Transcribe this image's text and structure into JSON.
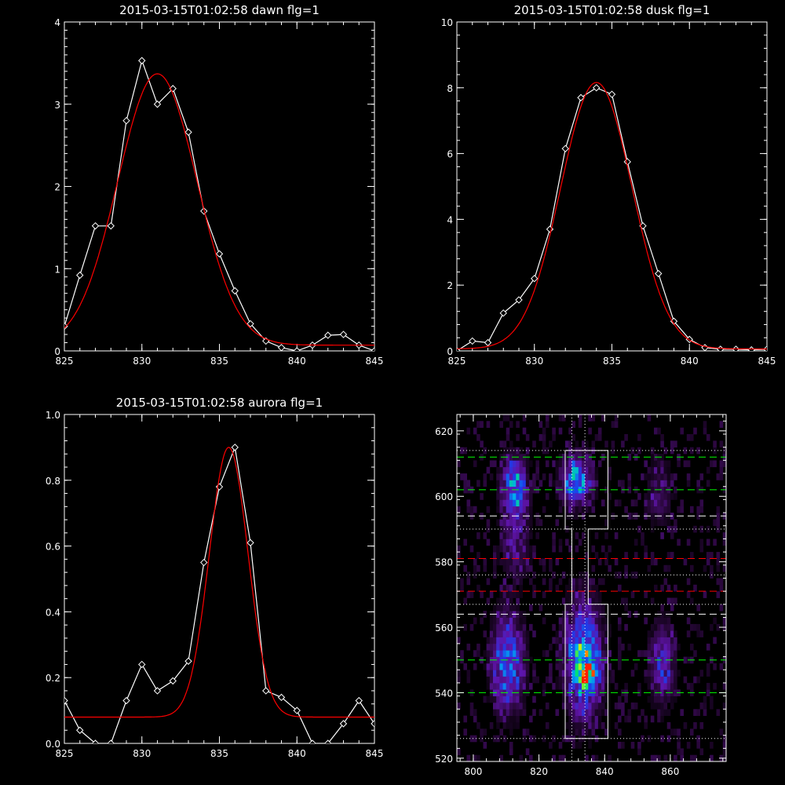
{
  "chart_data": [
    {
      "type": "line",
      "title": "2015-03-15T01:02:58 dawn flg=1",
      "xlim": [
        825,
        845
      ],
      "ylim": [
        0,
        4
      ],
      "xticks": [
        825,
        830,
        835,
        840,
        845
      ],
      "yticks": [
        0,
        1,
        2,
        3,
        4
      ],
      "series": [
        {
          "color": "#ffffff",
          "marker": "diamond",
          "x": [
            825,
            826,
            827,
            828,
            829,
            830,
            831,
            832,
            833,
            834,
            835,
            836,
            837,
            838,
            839,
            840,
            841,
            842,
            843,
            844,
            845
          ],
          "y": [
            0.3,
            0.92,
            1.52,
            1.52,
            2.8,
            3.53,
            3.0,
            3.19,
            2.66,
            1.7,
            1.18,
            0.73,
            0.33,
            0.12,
            0.04,
            0.0,
            0.07,
            0.19,
            0.2,
            0.07,
            0.0
          ]
        },
        {
          "color": "#ff0000",
          "fit": "gaussian",
          "amp": 3.3,
          "center": 831,
          "sigma": 2.55,
          "offset": 0.07
        }
      ]
    },
    {
      "type": "line",
      "title": "2015-03-15T01:02:58 dusk flg=1",
      "xlim": [
        825,
        845
      ],
      "ylim": [
        0,
        10
      ],
      "xticks": [
        825,
        830,
        835,
        840,
        845
      ],
      "yticks": [
        0,
        2,
        4,
        6,
        8,
        10
      ],
      "series": [
        {
          "color": "#ffffff",
          "marker": "diamond",
          "x": [
            825,
            826,
            827,
            828,
            829,
            830,
            831,
            832,
            833,
            834,
            835,
            836,
            837,
            838,
            839,
            840,
            841,
            842,
            843,
            844,
            845
          ],
          "y": [
            0.0,
            0.3,
            0.25,
            1.15,
            1.55,
            2.2,
            3.7,
            6.15,
            7.7,
            8.0,
            7.8,
            5.75,
            3.8,
            2.35,
            0.9,
            0.35,
            0.1,
            0.05,
            0.05,
            0.03,
            0.05
          ]
        },
        {
          "color": "#ff0000",
          "fit": "gaussian",
          "amp": 8.1,
          "center": 834,
          "sigma": 2.3,
          "offset": 0.06
        }
      ]
    },
    {
      "type": "line",
      "title": "2015-03-15T01:02:58 aurora flg=1",
      "xlim": [
        825,
        845
      ],
      "ylim": [
        0,
        1.0
      ],
      "xticks": [
        825,
        830,
        835,
        840,
        845
      ],
      "yticks": [
        0.0,
        0.2,
        0.4,
        0.6,
        0.8,
        1.0
      ],
      "series": [
        {
          "color": "#ffffff",
          "marker": "diamond",
          "x": [
            825,
            826,
            827,
            828,
            829,
            830,
            831,
            832,
            833,
            834,
            835,
            836,
            837,
            838,
            839,
            840,
            841,
            842,
            843,
            844,
            845
          ],
          "y": [
            0.13,
            0.04,
            0.0,
            0.0,
            0.13,
            0.24,
            0.16,
            0.19,
            0.25,
            0.55,
            0.78,
            0.9,
            0.61,
            0.16,
            0.14,
            0.1,
            0.0,
            0.0,
            0.06,
            0.13,
            0.06
          ]
        },
        {
          "color": "#ff0000",
          "fit": "gaussian",
          "amp": 0.82,
          "center": 835.6,
          "sigma": 1.25,
          "offset": 0.08
        }
      ]
    },
    {
      "type": "heatmap",
      "title": "",
      "xlim": [
        795,
        877
      ],
      "ylim": [
        519,
        625
      ],
      "xticks": [
        800,
        820,
        840,
        860
      ],
      "yticks": [
        520,
        540,
        560,
        580,
        600,
        620
      ],
      "colormap": "dark-purple-blue-cyan-green-yellow-red",
      "blobs": [
        {
          "x": 812,
          "y": 602,
          "sx": 2.5,
          "sy": 6,
          "amp": 0.5
        },
        {
          "x": 831,
          "y": 604,
          "sx": 3,
          "sy": 5,
          "amp": 0.55
        },
        {
          "x": 810,
          "y": 548,
          "sx": 3,
          "sy": 9,
          "amp": 0.55
        },
        {
          "x": 833,
          "y": 549,
          "sx": 3.5,
          "sy": 11,
          "amp": 0.65
        },
        {
          "x": 835,
          "y": 545,
          "sx": 1.8,
          "sy": 3,
          "amp": 0.45
        },
        {
          "x": 857,
          "y": 548,
          "sx": 2.5,
          "sy": 8,
          "amp": 0.32
        },
        {
          "x": 812,
          "y": 585,
          "sx": 3,
          "sy": 8,
          "amp": 0.18
        },
        {
          "x": 856,
          "y": 600,
          "sx": 3,
          "sy": 7,
          "amp": 0.15
        }
      ],
      "hlines": [
        {
          "y": 612,
          "color": "#00ff00",
          "style": "dashed"
        },
        {
          "y": 602,
          "color": "#00ff00",
          "style": "dashed"
        },
        {
          "y": 594,
          "color": "#ffffff",
          "style": "dashed"
        },
        {
          "y": 581,
          "color": "#ff0000",
          "style": "dashed"
        },
        {
          "y": 571,
          "color": "#ff0000",
          "style": "dashed"
        },
        {
          "y": 564,
          "color": "#ffffff",
          "style": "dashed"
        },
        {
          "y": 550,
          "color": "#00ff00",
          "style": "dashed"
        },
        {
          "y": 540,
          "color": "#00ff00",
          "style": "dashed"
        },
        {
          "y": 614,
          "color": "#ffffff",
          "style": "dotted"
        },
        {
          "y": 590,
          "color": "#ffffff",
          "style": "dotted"
        },
        {
          "y": 576,
          "color": "#ffffff",
          "style": "dotted"
        },
        {
          "y": 567,
          "color": "#ffffff",
          "style": "dotted"
        },
        {
          "y": 526,
          "color": "#ffffff",
          "style": "dotted"
        }
      ],
      "vlines": [
        {
          "x": 830,
          "color": "#ffffff",
          "style": "dotted"
        },
        {
          "x": 834,
          "color": "#ffffff",
          "style": "dotted"
        }
      ],
      "outline": [
        [
          828,
          614
        ],
        [
          841,
          614
        ],
        [
          841,
          590
        ],
        [
          835,
          590
        ],
        [
          835,
          567
        ],
        [
          841,
          567
        ],
        [
          841,
          526
        ],
        [
          828,
          526
        ],
        [
          828,
          567
        ],
        [
          830,
          567
        ],
        [
          830,
          590
        ],
        [
          828,
          590
        ],
        [
          828,
          614
        ]
      ]
    }
  ]
}
